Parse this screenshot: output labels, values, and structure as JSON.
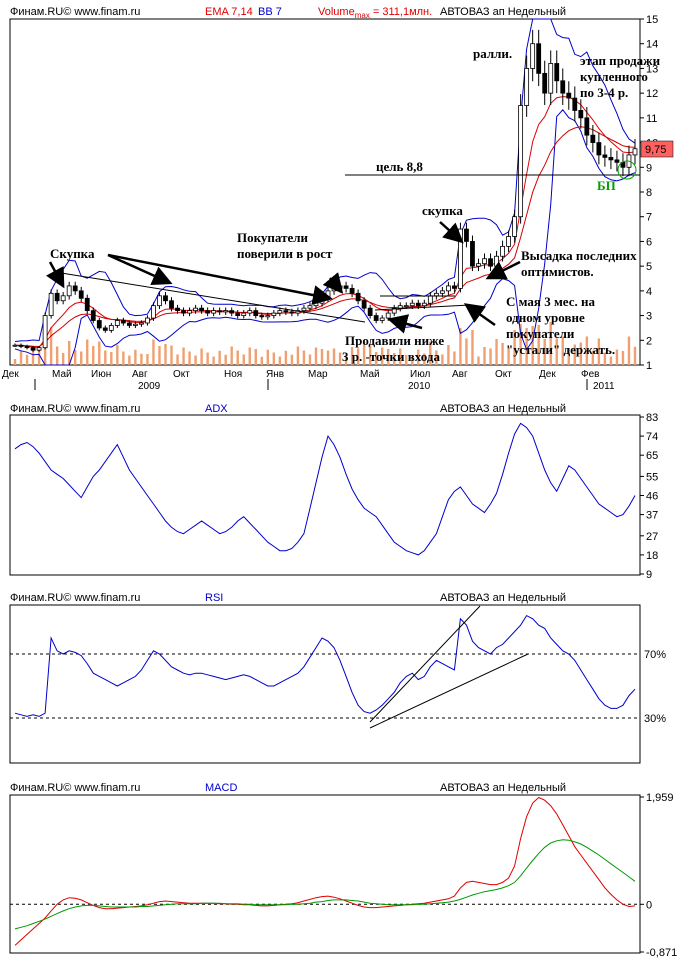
{
  "colors": {
    "ema_fast": "#e00000",
    "ema_slow": "#d00000",
    "bb": "#0000cc",
    "candle": "#000000",
    "volume": "#f0a070",
    "adx": "#0000cc",
    "rsi": "#0000cc",
    "macd": "#e00000",
    "signal": "#009900",
    "highlight": "#ff5050",
    "bp": "#00a000",
    "bg": "#ffffff",
    "frame": "#000000"
  },
  "price_panel": {
    "header_source": "Финам.RU©  www.finam.ru",
    "header_ema": "EMA 7,14",
    "header_bb": "BB 7",
    "header_volume": "Volume",
    "header_volume_sub": "max",
    "header_volume_val": " = 311,1млн.",
    "header_title": "АВТОВАЗ ап Недельный",
    "last_price": "9,75",
    "annotations": {
      "skupka1": "Скупка",
      "buyers1": "Покупатели",
      "buyers2": "поверили в рост",
      "pushed1": "Продавили ниже",
      "pushed2": "3 р. -точки входа",
      "skupka2": "скупка",
      "rally": "ралли.",
      "sell1": "этап продажи",
      "sell2": "купленного",
      "sell3": "по 3-4 р.",
      "target": "цель 8,8",
      "landing1": "Высадка последних",
      "landing2": "оптимистов.",
      "may1": "С мая 3 мес. на",
      "may2": "одном уровне",
      "may3": "покупатели",
      "may4": "\"устали\" держать.",
      "bp": "БП"
    },
    "month_labels": [
      "Дек",
      "Май",
      "Июн",
      "Авг",
      "Окт",
      "Ноя",
      "Янв",
      "Мар",
      "Май",
      "Июл",
      "Авг",
      "Окт",
      "Дек",
      "Фев"
    ],
    "year_labels": [
      "2009",
      "2010",
      "2011"
    ]
  },
  "adx_panel": {
    "header_source": "Финам.RU©  www.finam.ru",
    "header_name": "ADX",
    "header_title": "АВТОВАЗ ап Недельный"
  },
  "rsi_panel": {
    "header_source": "Финам.RU©  www.finam.ru",
    "header_name": "RSI",
    "header_title": "АВТОВАЗ ап Недельный",
    "level_high": "70%",
    "level_low": "30%"
  },
  "macd_panel": {
    "header_source": "Финам.RU©  www.finam.ru",
    "header_name": "MACD",
    "header_title": "АВТОВАЗ ап Недельный"
  },
  "chart_data": [
    {
      "type": "candlestick",
      "title": "АВТОВАЗ ап Недельный",
      "ylim": [
        1,
        15
      ],
      "yticks": [
        1,
        2,
        3,
        4,
        5,
        6,
        7,
        8,
        9,
        10,
        11,
        12,
        13,
        14,
        15
      ],
      "close": [
        1.8,
        1.75,
        1.7,
        1.6,
        1.7,
        3.0,
        3.9,
        3.6,
        3.8,
        4.2,
        4.0,
        3.7,
        3.2,
        2.8,
        2.5,
        2.4,
        2.6,
        2.8,
        2.7,
        2.6,
        2.65,
        2.7,
        2.9,
        3.4,
        3.8,
        3.6,
        3.3,
        3.2,
        3.1,
        3.2,
        3.3,
        3.2,
        3.1,
        3.2,
        3.15,
        3.2,
        3.1,
        3.0,
        3.1,
        3.2,
        3.0,
        2.95,
        3.0,
        3.1,
        3.2,
        3.15,
        3.1,
        3.2,
        3.3,
        3.4,
        3.5,
        3.7,
        4.0,
        4.1,
        4.2,
        4.1,
        3.9,
        3.6,
        3.3,
        3.0,
        2.8,
        2.9,
        3.1,
        3.3,
        3.4,
        3.4,
        3.5,
        3.4,
        3.5,
        3.8,
        3.9,
        4.0,
        4.2,
        4.1,
        6.5,
        6.0,
        5.0,
        5.1,
        5.3,
        5.0,
        5.4,
        5.8,
        6.2,
        7.0,
        11.5,
        13.0,
        14.0,
        12.8,
        12.0,
        13.2,
        12.5,
        12.0,
        11.8,
        11.3,
        11.0,
        10.3,
        10.0,
        9.5,
        9.4,
        9.3,
        9.2,
        9.0,
        9.5,
        9.75
      ],
      "high_max": 14.5,
      "low_min": 1.4,
      "volume_max": "311,1млн."
    },
    {
      "type": "line",
      "title": "ADX",
      "ylim": [
        9,
        83
      ],
      "yticks": [
        9,
        18,
        27,
        37,
        46,
        55,
        65,
        74,
        83
      ],
      "values": [
        68,
        70,
        71,
        69,
        66,
        62,
        58,
        56,
        54,
        51,
        48,
        45,
        50,
        55,
        58,
        62,
        66,
        70,
        64,
        58,
        54,
        50,
        46,
        42,
        38,
        34,
        31,
        29,
        28,
        30,
        32,
        34,
        32,
        30,
        28,
        29,
        31,
        34,
        36,
        33,
        30,
        27,
        24,
        22,
        20,
        20,
        21,
        24,
        28,
        40,
        52,
        64,
        74,
        70,
        64,
        56,
        49,
        44,
        40,
        38,
        36,
        32,
        28,
        24,
        22,
        20,
        19,
        18,
        20,
        24,
        28,
        36,
        44,
        48,
        50,
        46,
        42,
        40,
        38,
        42,
        47,
        56,
        66,
        75,
        80,
        78,
        74,
        66,
        58,
        52,
        48,
        54,
        60,
        58,
        54,
        50,
        46,
        42,
        40,
        38,
        36,
        37,
        41,
        46
      ]
    },
    {
      "type": "line",
      "title": "RSI",
      "ylim": [
        0,
        100
      ],
      "levels": [
        30,
        70
      ],
      "values": [
        33,
        32,
        31,
        32,
        31,
        33,
        80,
        72,
        70,
        72,
        71,
        69,
        64,
        58,
        56,
        54,
        52,
        50,
        52,
        54,
        56,
        60,
        66,
        72,
        70,
        66,
        62,
        60,
        58,
        57,
        58,
        58,
        57,
        56,
        55,
        54,
        55,
        56,
        57,
        56,
        54,
        52,
        50,
        50,
        52,
        54,
        56,
        58,
        62,
        68,
        74,
        80,
        78,
        74,
        66,
        56,
        46,
        38,
        34,
        33,
        35,
        38,
        42,
        46,
        52,
        56,
        58,
        54,
        56,
        62,
        66,
        64,
        62,
        60,
        92,
        88,
        78,
        74,
        72,
        70,
        74,
        76,
        80,
        84,
        88,
        94,
        92,
        88,
        86,
        80,
        76,
        72,
        70,
        66,
        60,
        54,
        48,
        42,
        38,
        36,
        36,
        38,
        44,
        48
      ]
    },
    {
      "type": "line",
      "title": "MACD",
      "ylim": [
        -0.871,
        1.959
      ],
      "yticks": [
        -0.871,
        0,
        1.959
      ],
      "macd": [
        -0.75,
        -0.65,
        -0.55,
        -0.45,
        -0.35,
        -0.25,
        -0.12,
        0.0,
        0.08,
        0.12,
        0.11,
        0.08,
        0.03,
        -0.02,
        -0.06,
        -0.08,
        -0.08,
        -0.07,
        -0.06,
        -0.05,
        -0.04,
        -0.03,
        -0.01,
        0.02,
        0.05,
        0.06,
        0.05,
        0.04,
        0.03,
        0.02,
        0.02,
        0.02,
        0.02,
        0.02,
        0.01,
        0.01,
        0.0,
        0.0,
        -0.01,
        -0.01,
        -0.02,
        -0.03,
        -0.03,
        -0.02,
        -0.01,
        0.0,
        0.01,
        0.03,
        0.06,
        0.09,
        0.12,
        0.14,
        0.15,
        0.13,
        0.1,
        0.06,
        0.02,
        -0.02,
        -0.05,
        -0.06,
        -0.06,
        -0.05,
        -0.04,
        -0.03,
        -0.02,
        -0.01,
        0.0,
        0.01,
        0.02,
        0.04,
        0.06,
        0.08,
        0.1,
        0.15,
        0.3,
        0.4,
        0.42,
        0.4,
        0.38,
        0.36,
        0.36,
        0.4,
        0.48,
        0.7,
        1.2,
        1.6,
        1.85,
        1.95,
        1.9,
        1.8,
        1.65,
        1.45,
        1.25,
        1.05,
        0.9,
        0.75,
        0.6,
        0.45,
        0.3,
        0.18,
        0.08,
        0.0,
        -0.04,
        -0.03
      ],
      "signal": [
        -0.45,
        -0.42,
        -0.39,
        -0.35,
        -0.31,
        -0.27,
        -0.22,
        -0.17,
        -0.12,
        -0.08,
        -0.05,
        -0.03,
        -0.02,
        -0.02,
        -0.03,
        -0.04,
        -0.05,
        -0.05,
        -0.05,
        -0.05,
        -0.05,
        -0.04,
        -0.04,
        -0.03,
        -0.02,
        -0.01,
        0.0,
        0.01,
        0.01,
        0.01,
        0.01,
        0.02,
        0.02,
        0.02,
        0.02,
        0.01,
        0.01,
        0.01,
        0.0,
        0.0,
        -0.01,
        -0.01,
        -0.01,
        -0.01,
        -0.01,
        -0.01,
        0.0,
        0.0,
        0.01,
        0.02,
        0.04,
        0.05,
        0.07,
        0.08,
        0.08,
        0.08,
        0.07,
        0.06,
        0.04,
        0.02,
        0.01,
        0.0,
        -0.01,
        -0.01,
        -0.01,
        -0.01,
        -0.01,
        0.0,
        0.0,
        0.01,
        0.02,
        0.03,
        0.04,
        0.06,
        0.09,
        0.13,
        0.17,
        0.2,
        0.23,
        0.25,
        0.27,
        0.3,
        0.34,
        0.4,
        0.52,
        0.66,
        0.8,
        0.93,
        1.04,
        1.12,
        1.16,
        1.18,
        1.17,
        1.14,
        1.1,
        1.04,
        0.97,
        0.9,
        0.82,
        0.74,
        0.66,
        0.58,
        0.5,
        0.42
      ]
    }
  ]
}
